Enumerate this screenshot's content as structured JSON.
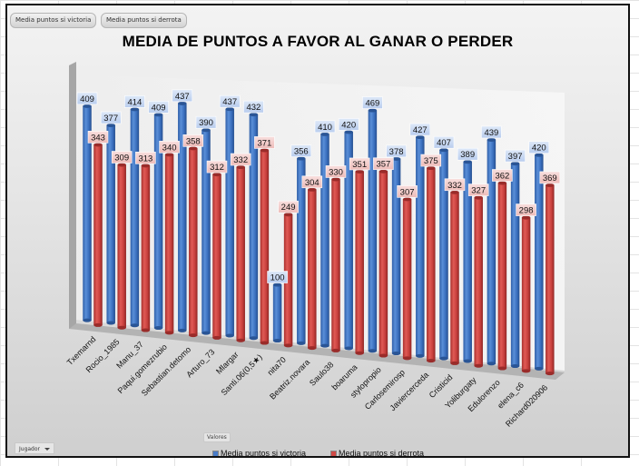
{
  "window": {
    "field_buttons": [
      "Media puntos si victoria",
      "Media puntos si derrota"
    ],
    "values_label": "Valores",
    "row_field": "Jugador"
  },
  "colors": {
    "victoria": "#3f74c2",
    "derrota": "#c8403d",
    "label_victoria_bg": "#c9d9f2",
    "label_derrota_bg": "#f2c9c7"
  },
  "chart_data": {
    "type": "bar",
    "title": "MEDIA DE PUNTOS A FAVOR AL GANAR O PERDER",
    "xlabel": "",
    "ylabel": "",
    "ylim": [
      0,
      500
    ],
    "legend_position": "bottom",
    "categories": [
      "Txemarnd",
      "Rocio_1985",
      "Manu_37",
      "Paqui.gomezrubio",
      "Sebastian.detomo",
      "Arturo_73",
      "Mlargar",
      "Santi.06(0,5★)",
      "nita70",
      "Beatriz.novara",
      "Saulo38",
      "boaruma",
      "stylopropio",
      "Carlosemirosp",
      "Javiercerceda",
      "Cristicid",
      "Yoliburgaty",
      "Edulorenzo",
      "elena_c6",
      "Richard020906"
    ],
    "series": [
      {
        "name": "Media puntos si victoria",
        "values": [
          409,
          377,
          414,
          409,
          437,
          390,
          437,
          432,
          100,
          356,
          410,
          420,
          469,
          378,
          427,
          407,
          389,
          439,
          397,
          420
        ]
      },
      {
        "name": "Media puntos si derrota",
        "values": [
          343,
          309,
          313,
          340,
          358,
          312,
          332,
          371,
          249,
          304,
          330,
          351,
          357,
          307,
          375,
          332,
          327,
          362,
          298,
          369
        ]
      }
    ]
  }
}
